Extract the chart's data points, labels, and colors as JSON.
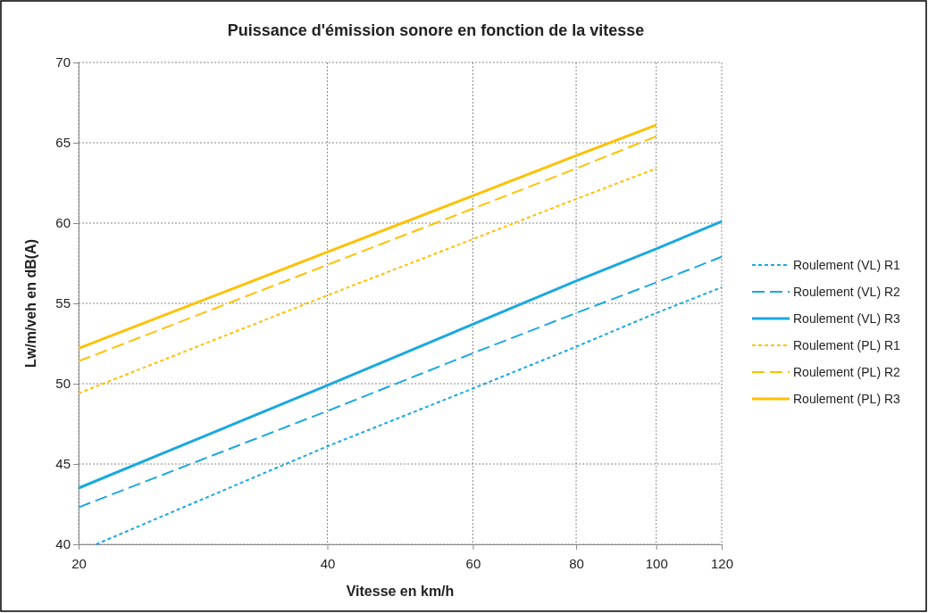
{
  "chart_data": {
    "type": "line",
    "title": "Puissance d'émission sonore en fonction de la vitesse",
    "xlabel": "Vitesse en km/h",
    "ylabel": "Lw/m/veh en dB(A)",
    "log": "x",
    "xlim": [
      20,
      120
    ],
    "xticks": [
      20,
      40,
      60,
      80,
      100,
      120
    ],
    "ylim": [
      40,
      70
    ],
    "yticks": [
      40,
      45,
      50,
      55,
      60,
      65,
      70
    ],
    "grid": true,
    "legend": "right",
    "marker": "none",
    "series": [
      {
        "name": "Roulement (VL) R1",
        "color": "#1ba8e0",
        "line_style": "dotted",
        "x": [
          21,
          40,
          60,
          80,
          100,
          120
        ],
        "values": [
          40,
          46.1,
          49.7,
          52.3,
          54.4,
          56.0
        ]
      },
      {
        "name": "Roulement (VL) R2",
        "color": "#1ba8e0",
        "line_style": "dashed",
        "x": [
          20,
          40,
          60,
          80,
          100,
          120
        ],
        "values": [
          42.3,
          48.3,
          51.9,
          54.4,
          56.3,
          57.9
        ]
      },
      {
        "name": "Roulement (VL) R3",
        "color": "#1ba8e0",
        "line_style": "solid",
        "x": [
          20,
          40,
          60,
          80,
          100,
          120
        ],
        "values": [
          43.5,
          49.9,
          53.7,
          56.4,
          58.4,
          60.1
        ]
      },
      {
        "name": "Roulement (PL) R1",
        "color": "#ffc000",
        "line_style": "dotted",
        "x": [
          20,
          40,
          60,
          80,
          100
        ],
        "values": [
          49.4,
          55.5,
          59.0,
          61.5,
          63.4
        ]
      },
      {
        "name": "Roulement (PL) R2",
        "color": "#ffc000",
        "line_style": "dashed",
        "x": [
          20,
          40,
          60,
          80,
          100
        ],
        "values": [
          51.4,
          57.4,
          60.9,
          63.4,
          65.4
        ]
      },
      {
        "name": "Roulement (PL) R3",
        "color": "#ffc000",
        "line_style": "solid",
        "x": [
          20,
          40,
          60,
          80,
          100
        ],
        "values": [
          52.2,
          58.2,
          61.7,
          64.2,
          66.1
        ]
      }
    ]
  }
}
